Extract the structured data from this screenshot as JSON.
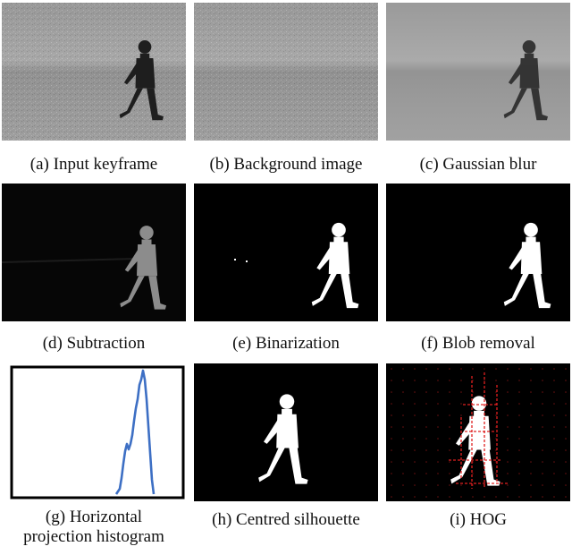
{
  "panels": [
    {
      "id": "a",
      "caption": "(a) Input keyframe"
    },
    {
      "id": "b",
      "caption": "(b) Background image"
    },
    {
      "id": "c",
      "caption": "(c) Gaussian blur"
    },
    {
      "id": "d",
      "caption": "(d) Subtraction"
    },
    {
      "id": "e",
      "caption": "(e) Binarization"
    },
    {
      "id": "f",
      "caption": "(f) Blob removal"
    },
    {
      "id": "g",
      "caption_line1": "(g) Horizontal",
      "caption_line2": "projection histogram"
    },
    {
      "id": "h",
      "caption": "(h) Centred silhouette"
    },
    {
      "id": "i",
      "caption": "(i) HOG"
    }
  ],
  "colors": {
    "ground_light": "#a9a9a9",
    "ground_dark": "#8a8a8a",
    "silhouette": "#ffffff",
    "mask_bg": "#000000",
    "histogram_line": "#3d6fc4",
    "hog_overlay": "#e02020"
  }
}
